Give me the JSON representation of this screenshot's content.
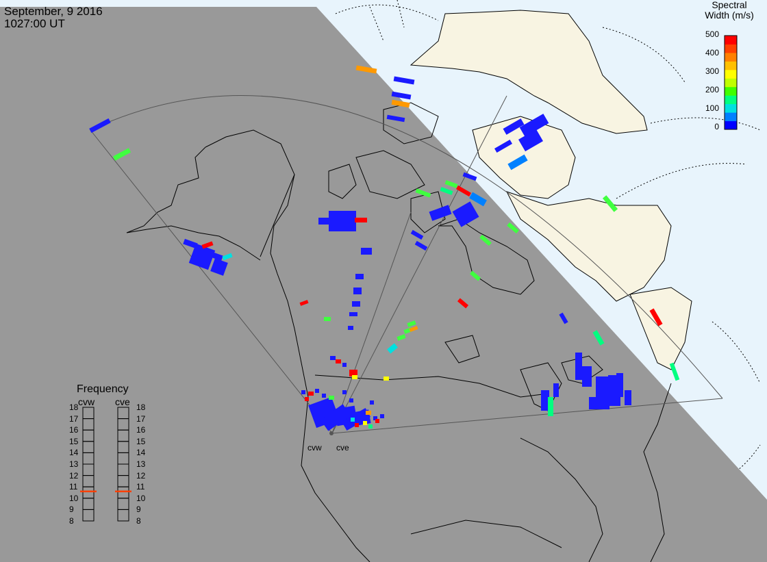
{
  "header": {
    "date": "September, 9 2016",
    "time": "1027:00 UT"
  },
  "colorbar": {
    "title_line1": "Spectral",
    "title_line2": "Width (m/s)",
    "ticks": [
      "500",
      "400",
      "300",
      "200",
      "100",
      "0"
    ],
    "colors": [
      "#0000ff",
      "#0080ff",
      "#00e0e0",
      "#00ff80",
      "#40ff00",
      "#c0ff00",
      "#ffff00",
      "#ffc000",
      "#ff8000",
      "#ff4000",
      "#ff0000"
    ]
  },
  "frequency_panel": {
    "title": "Frequency",
    "radars": [
      {
        "label": "cvw",
        "marker_mhz": 10.6,
        "marker_color": "#ff4000"
      },
      {
        "label": "cve",
        "marker_mhz": 10.6,
        "marker_color": "#ff4000"
      }
    ],
    "scale": [
      "18",
      "17",
      "16",
      "15",
      "14",
      "13",
      "12",
      "11",
      "10",
      "9",
      "8"
    ],
    "scale_min": 8,
    "scale_max": 18
  },
  "radar_sites": [
    {
      "id": "cvw",
      "label": "cvw"
    },
    {
      "id": "cve",
      "label": "cve"
    }
  ],
  "map_colors": {
    "night": "#999999",
    "ocean_day": "#e8f4fc",
    "land_day": "#f8f4e2",
    "coast": "#000000"
  }
}
